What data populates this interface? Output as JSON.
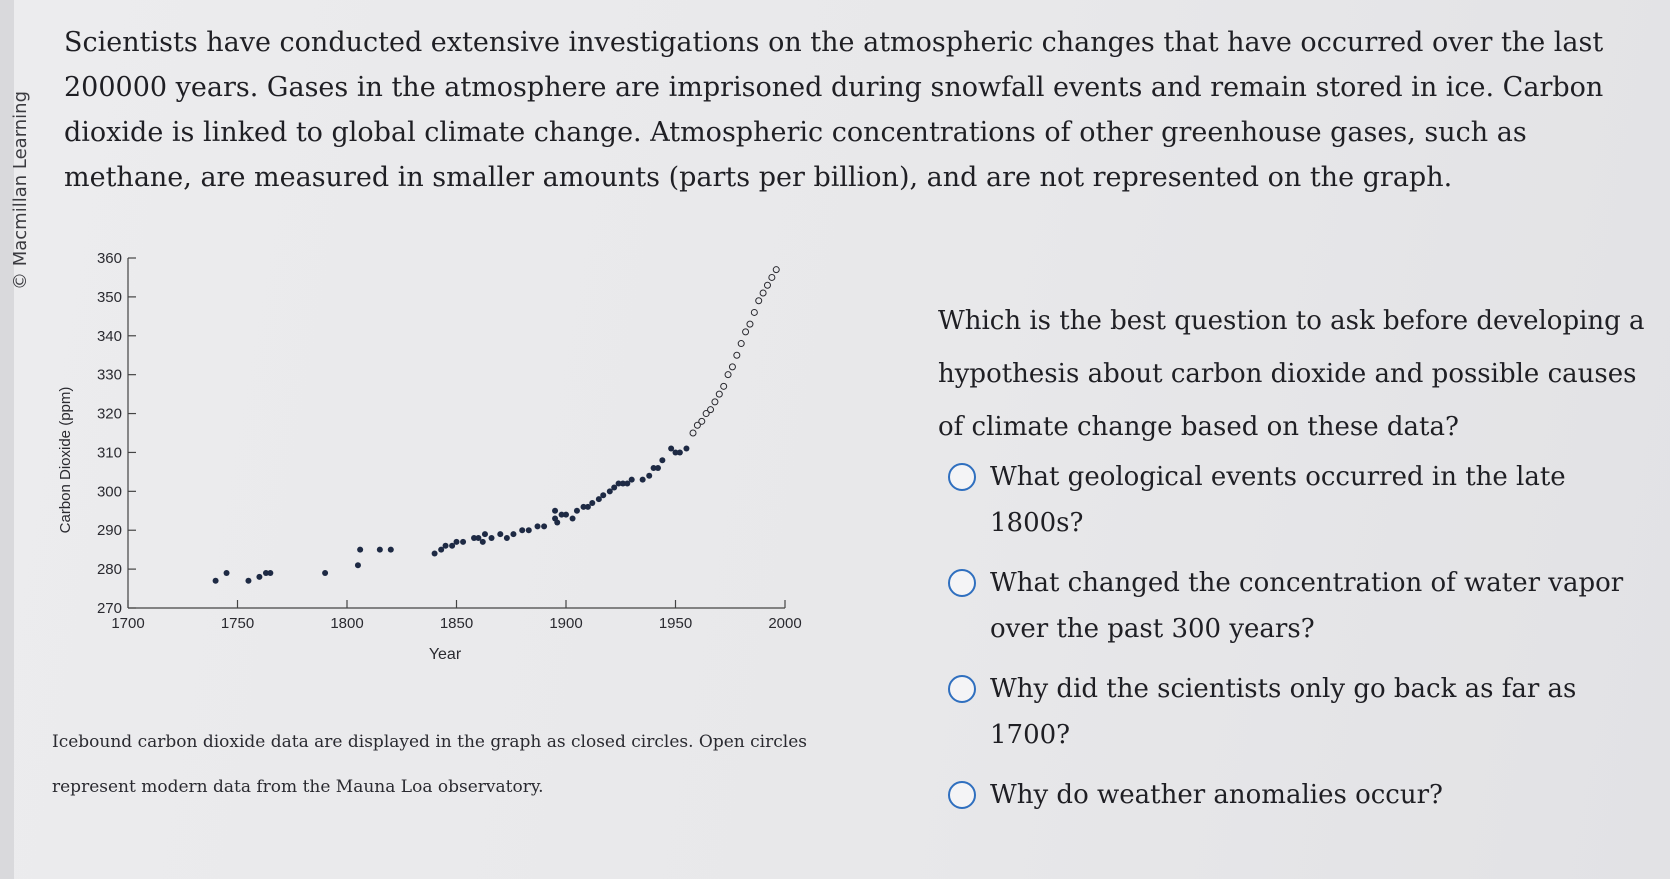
{
  "copyright": "© Macmillan Learning",
  "intro": "Scientists have conducted extensive investigations on the atmospheric changes that have occurred over the last 200000 years. Gases in the atmosphere are imprisoned during snowfall events and remain stored in ice. Carbon dioxide is linked to global climate change. Atmospheric concentrations of other greenhouse gases, such as methane, are measured in smaller amounts (parts per billion), and are not represented on the graph.",
  "question": "Which is the best question to ask before developing a hypothesis about carbon dioxide and possible causes of climate change based on these data?",
  "options": [
    "What geological events occurred in the late 1800s?",
    "What changed the concentration of water vapor over the past 300 years?",
    "Why did the scientists only go back as far as 1700?",
    "Why do weather anomalies occur?"
  ],
  "caption": "Icebound carbon dioxide data are displayed in the graph as closed circles. Open circles represent modern data from the Mauna Loa observatory.",
  "chart_data": {
    "type": "scatter",
    "xlabel": "Year",
    "ylabel": "Carbon Dioxide (ppm)",
    "xlim": [
      1700,
      2000
    ],
    "ylim": [
      270,
      360
    ],
    "xticks": [
      1700,
      1750,
      1800,
      1850,
      1900,
      1950,
      2000
    ],
    "yticks": [
      270,
      280,
      290,
      300,
      310,
      320,
      330,
      340,
      350,
      360
    ],
    "series": [
      {
        "marker": "closed",
        "x": [
          1740,
          1745,
          1755,
          1760,
          1763,
          1765,
          1790,
          1805,
          1806,
          1815,
          1820,
          1840,
          1843,
          1845,
          1848,
          1850,
          1853,
          1858,
          1860,
          1862,
          1863,
          1866,
          1870,
          1873,
          1876,
          1880,
          1883,
          1887,
          1890,
          1895,
          1895,
          1896,
          1898,
          1900,
          1903,
          1905,
          1908,
          1910,
          1912,
          1915,
          1917,
          1920,
          1922,
          1924,
          1926,
          1928,
          1930,
          1935,
          1938,
          1940,
          1942,
          1944,
          1948,
          1950,
          1952,
          1955
        ],
        "y": [
          277,
          279,
          277,
          278,
          279,
          279,
          279,
          281,
          285,
          285,
          285,
          284,
          285,
          286,
          286,
          287,
          287,
          288,
          288,
          287,
          289,
          288,
          289,
          288,
          289,
          290,
          290,
          291,
          291,
          295,
          293,
          292,
          294,
          294,
          293,
          295,
          296,
          296,
          297,
          298,
          299,
          300,
          301,
          302,
          302,
          302,
          303,
          303,
          304,
          306,
          306,
          308,
          311,
          310,
          310,
          311
        ]
      },
      {
        "marker": "open",
        "x": [
          1958,
          1960,
          1962,
          1964,
          1966,
          1968,
          1970,
          1972,
          1974,
          1976,
          1978,
          1980,
          1982,
          1984,
          1986,
          1988,
          1990,
          1992,
          1994,
          1996
        ],
        "y": [
          315,
          317,
          318,
          320,
          321,
          323,
          325,
          327,
          330,
          332,
          335,
          338,
          341,
          343,
          346,
          349,
          351,
          353,
          355,
          357
        ]
      }
    ]
  }
}
